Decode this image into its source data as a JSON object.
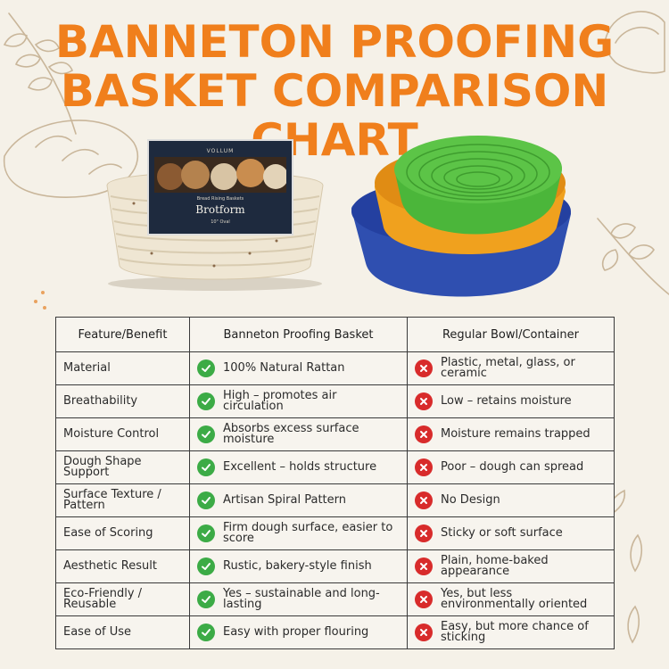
{
  "title": {
    "line1": "BANNETON PROOFING",
    "line2": "BASKET COMPARISON CHART"
  },
  "colors": {
    "title": "#f07f1c",
    "check": "#3cab46",
    "cross": "#d82b2b",
    "background": "#f5f1e8"
  },
  "product_left": {
    "booklet_brand": "VOLLUM",
    "booklet_subtitle": "Bread Rising Baskets",
    "booklet_name": "Brotform",
    "booklet_size": "10\" Oval"
  },
  "table": {
    "headers": [
      "Feature/Benefit",
      "Banneton Proofing Basket",
      "Regular Bowl/Container"
    ],
    "rows": [
      {
        "feature": "Material",
        "banneton": "100% Natural Rattan",
        "regular": "Plastic, metal, glass, or ceramic"
      },
      {
        "feature": "Breathability",
        "banneton": "High – promotes air circulation",
        "regular": "Low – retains moisture"
      },
      {
        "feature": "Moisture Control",
        "banneton": "Absorbs excess surface moisture",
        "regular": "Moisture remains trapped"
      },
      {
        "feature": "Dough Shape Support",
        "banneton": "Excellent – holds structure",
        "regular": "Poor – dough can spread"
      },
      {
        "feature": "Surface Texture / Pattern",
        "banneton": "Artisan Spiral Pattern",
        "regular": "No Design"
      },
      {
        "feature": "Ease of Scoring",
        "banneton": "Firm dough surface, easier to score",
        "regular": "Sticky or soft surface"
      },
      {
        "feature": "Aesthetic Result",
        "banneton": "Rustic, bakery-style finish",
        "regular": "Plain, home-baked appearance"
      },
      {
        "feature": "Eco-Friendly / Reusable",
        "banneton": "Yes – sustainable and long-lasting",
        "regular": "Yes, but less environmentally oriented"
      },
      {
        "feature": "Ease of Use",
        "banneton": "Easy with proper flouring",
        "regular": "Easy, but more chance of sticking"
      }
    ],
    "icons": {
      "banneton": "check-circle-icon",
      "regular": "x-circle-icon"
    }
  }
}
